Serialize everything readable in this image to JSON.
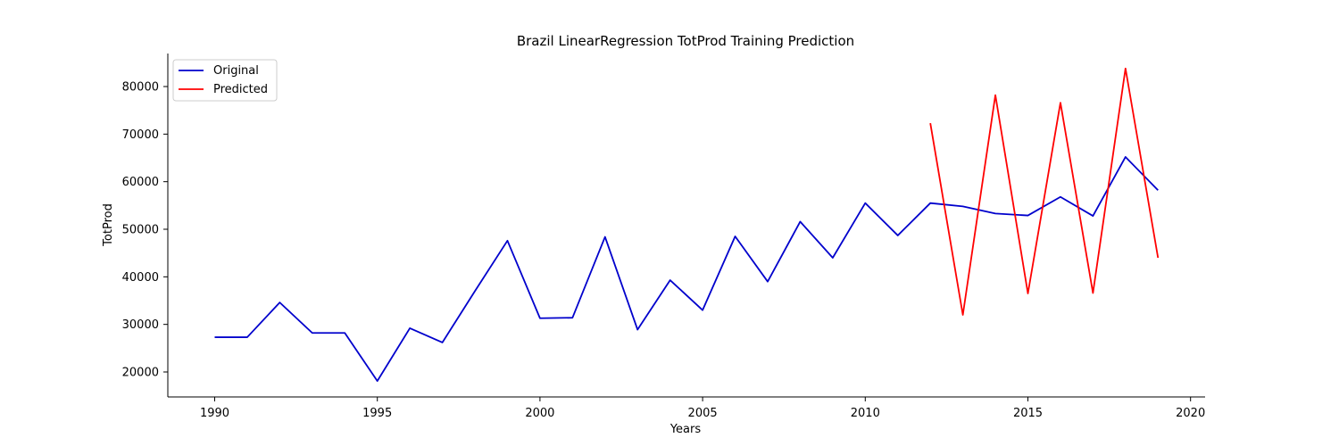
{
  "chart_data": {
    "type": "line",
    "title": "Brazil LinearRegression TotProd Training Prediction",
    "xlabel": "Years",
    "ylabel": "TotProd",
    "xlim": [
      1988.55,
      1990.0
    ],
    "ylim": [
      15000,
      87000
    ],
    "xticks": [
      1990,
      1995,
      2000,
      2005,
      2010,
      2015,
      2020
    ],
    "yticks": [
      20000,
      30000,
      40000,
      50000,
      60000,
      70000,
      80000
    ],
    "legend_position": "top-left",
    "grid": false,
    "series": [
      {
        "name": "Original",
        "color": "#0000cc",
        "x": [
          1990,
          1991,
          1992,
          1993,
          1994,
          1995,
          1996,
          1997,
          1998,
          1999,
          2000,
          2001,
          2002,
          2003,
          2004,
          2005,
          2006,
          2007,
          2008,
          2009,
          2010,
          2011,
          2012,
          2013,
          2014,
          2015,
          2016,
          2017,
          2018,
          2019
        ],
        "y": [
          27300,
          27300,
          34600,
          28200,
          28200,
          18100,
          29200,
          26200,
          37000,
          47600,
          31300,
          31400,
          48400,
          28900,
          39300,
          33000,
          48500,
          39000,
          51600,
          44000,
          55500,
          48700,
          55500,
          54800,
          53300,
          52900,
          56800,
          52800,
          65200,
          58200
        ]
      },
      {
        "name": "Predicted",
        "color": "#ff0000",
        "x": [
          2012,
          2013,
          2014,
          2015,
          2016,
          2017,
          2018,
          2019
        ],
        "y": [
          72300,
          32000,
          78200,
          36500,
          76600,
          36600,
          83800,
          44000
        ]
      }
    ]
  }
}
